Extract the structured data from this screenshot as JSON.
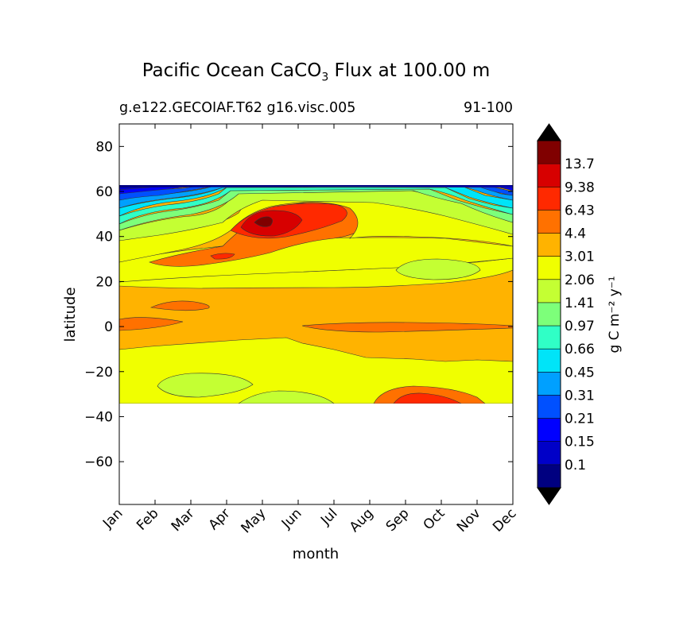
{
  "title": {
    "text": "Pacific Ocean CaCO",
    "sub": "3",
    "rest": " Flux at 100.00 m"
  },
  "subtitle_left": "g.e122.GECOIAF.T62 g16.visc.005",
  "subtitle_right": "91-100",
  "chart_data": {
    "type": "heatmap",
    "xlabel": "month",
    "ylabel": "latitude",
    "x_categories": [
      "Jan",
      "Feb",
      "Mar",
      "Apr",
      "May",
      "Jun",
      "Jul",
      "Aug",
      "Sep",
      "Oct",
      "Nov",
      "Dec"
    ],
    "ylim": [
      -79,
      90
    ],
    "y_ticks": [
      80,
      60,
      40,
      20,
      0,
      -20,
      -40,
      -60
    ],
    "y_tick_labels": [
      "80",
      "60",
      "40",
      "20",
      "0",
      "−20",
      "−40",
      "−60"
    ],
    "data_lat_range": [
      -34,
      62
    ],
    "colorbar": {
      "label": "g C m⁻² y⁻¹",
      "extend": "both",
      "levels": [
        "0.1",
        "0.15",
        "0.21",
        "0.31",
        "0.45",
        "0.66",
        "0.97",
        "1.41",
        "2.06",
        "3.01",
        "4.4",
        "6.43",
        "9.38",
        "13.7"
      ],
      "colors": [
        "#000080",
        "#0000c8",
        "#0000ff",
        "#0050ff",
        "#00a0ff",
        "#00e4f8",
        "#30ffc6",
        "#7dff7a",
        "#c4ff33",
        "#f0ff00",
        "#ffb300",
        "#ff7100",
        "#ff2900",
        "#d70000",
        "#800000"
      ],
      "under_color": "#000000",
      "over_color": "#000000"
    },
    "values_lat_rows": [
      {
        "lat": 62,
        "values": [
          0.1,
          0.1,
          0.15,
          0.66,
          2.06,
          2.06,
          2.06,
          2.06,
          2.06,
          0.97,
          0.31,
          0.1
        ]
      },
      {
        "lat": 55,
        "values": [
          0.45,
          0.66,
          0.97,
          2.06,
          3.01,
          3.01,
          3.01,
          3.01,
          2.06,
          1.41,
          0.66,
          0.31
        ]
      },
      {
        "lat": 50,
        "values": [
          0.66,
          0.97,
          1.41,
          3.01,
          4.4,
          6.43,
          4.4,
          3.01,
          2.06,
          1.41,
          0.97,
          0.66
        ]
      },
      {
        "lat": 45,
        "values": [
          0.97,
          1.41,
          2.06,
          4.4,
          13.7,
          9.38,
          6.43,
          3.01,
          2.06,
          2.06,
          1.41,
          0.97
        ]
      },
      {
        "lat": 40,
        "values": [
          1.41,
          2.06,
          2.06,
          4.4,
          9.38,
          6.43,
          4.4,
          3.01,
          2.06,
          2.06,
          2.06,
          1.41
        ]
      },
      {
        "lat": 30,
        "values": [
          3.01,
          3.01,
          3.01,
          4.4,
          4.4,
          3.01,
          3.01,
          2.06,
          2.06,
          2.06,
          2.06,
          3.01
        ]
      },
      {
        "lat": 25,
        "values": [
          2.06,
          2.06,
          2.06,
          2.06,
          2.06,
          2.06,
          2.06,
          2.06,
          1.41,
          2.06,
          2.06,
          2.06
        ]
      },
      {
        "lat": 10,
        "values": [
          3.01,
          4.4,
          3.01,
          3.01,
          3.01,
          3.01,
          3.01,
          3.01,
          3.01,
          3.01,
          3.01,
          3.01
        ]
      },
      {
        "lat": 0,
        "values": [
          4.4,
          4.4,
          3.01,
          3.01,
          3.01,
          4.4,
          4.4,
          4.4,
          4.4,
          4.4,
          4.4,
          4.4
        ]
      },
      {
        "lat": -10,
        "values": [
          2.06,
          2.06,
          3.01,
          3.01,
          3.01,
          3.01,
          3.01,
          3.01,
          3.01,
          3.01,
          3.01,
          3.01
        ]
      },
      {
        "lat": -25,
        "values": [
          2.06,
          2.06,
          1.41,
          1.41,
          2.06,
          2.06,
          2.06,
          2.06,
          3.01,
          3.01,
          2.06,
          2.06
        ]
      },
      {
        "lat": -32,
        "values": [
          2.06,
          2.06,
          2.06,
          2.06,
          1.41,
          1.41,
          2.06,
          2.06,
          6.43,
          4.4,
          3.01,
          2.06
        ]
      }
    ]
  }
}
